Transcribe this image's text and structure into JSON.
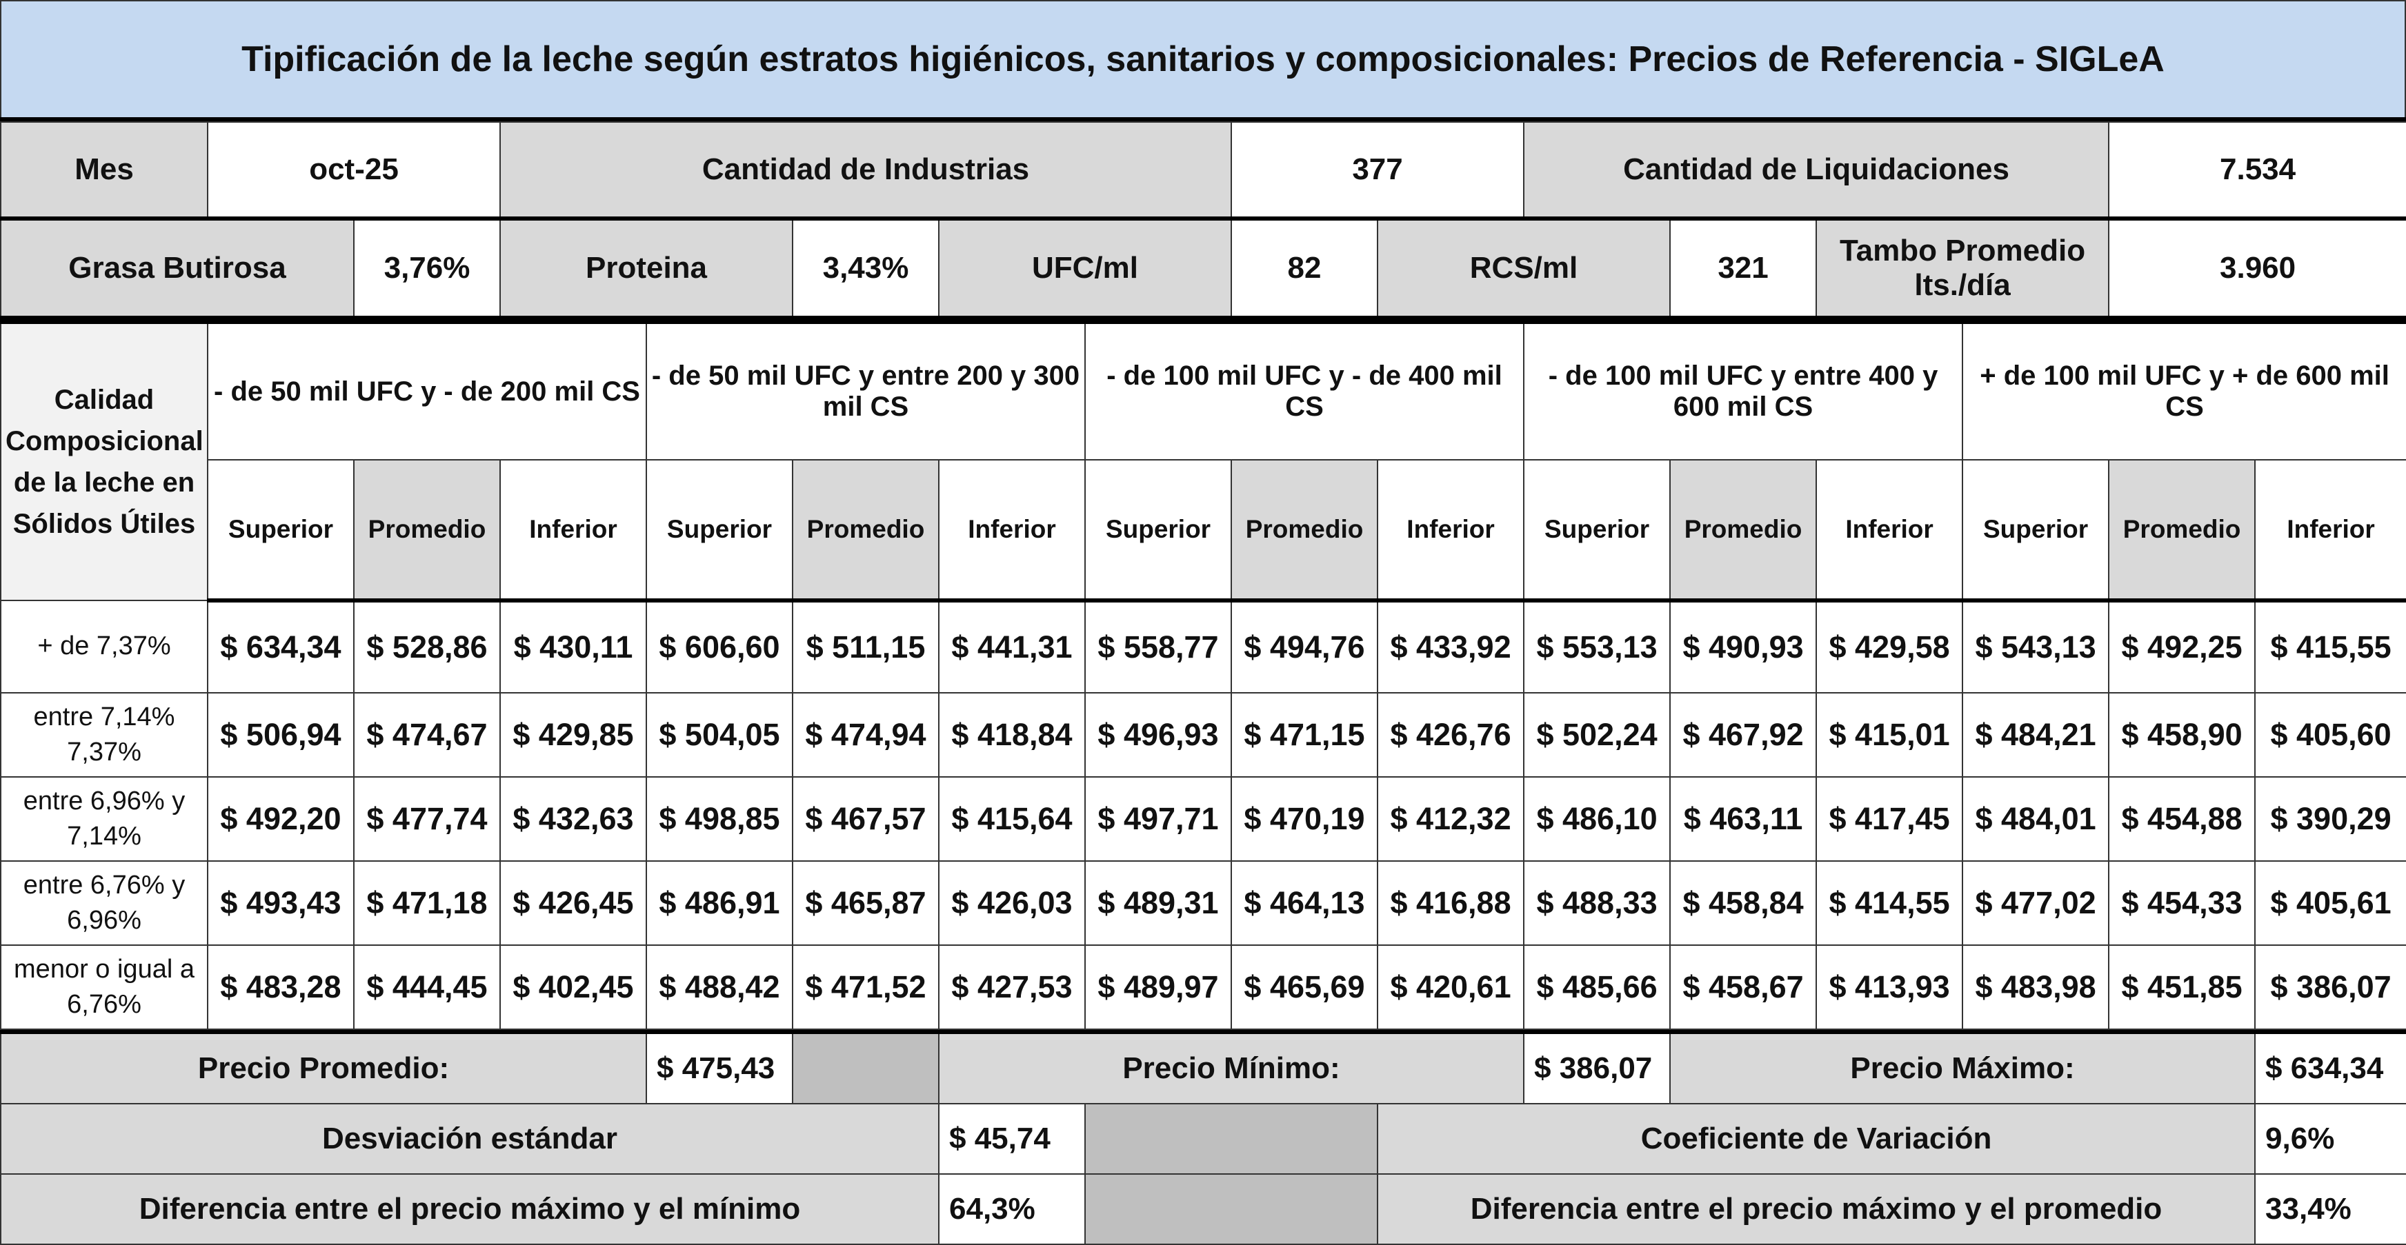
{
  "title": "Tipificación de la leche según estratos higiénicos, sanitarios y composicionales: Precios de Referencia - SIGLeA",
  "info": {
    "mes_label": "Mes",
    "mes_value": "oct-25",
    "industrias_label": "Cantidad de Industrias",
    "industrias_value": "377",
    "liquidaciones_label": "Cantidad de Liquidaciones",
    "liquidaciones_value": "7.534",
    "grasa_label": "Grasa Butirosa",
    "grasa_value": "3,76%",
    "proteina_label": "Proteina",
    "proteina_value": "3,43%",
    "ufc_label": "UFC/ml",
    "ufc_value": "82",
    "rcs_label": "RCS/ml",
    "rcs_value": "321",
    "tambo_label": "Tambo Promedio lts./día",
    "tambo_value": "3.960"
  },
  "side_header": "Calidad Composicional de la leche en Sólidos Útiles",
  "groups": [
    "- de 50 mil UFC y - de 200 mil CS",
    "- de 50 mil UFC y entre 200 y 300 mil CS",
    "- de 100 mil UFC y - de 400 mil CS",
    "- de 100 mil UFC y entre 400 y 600 mil CS",
    "+ de 100 mil UFC y + de 600 mil CS"
  ],
  "subcols": [
    "Superior",
    "Promedio",
    "Inferior"
  ],
  "rows": [
    {
      "label": "+ de 7,37%",
      "values": [
        "$ 634,34",
        "$ 528,86",
        "$ 430,11",
        "$ 606,60",
        "$ 511,15",
        "$ 441,31",
        "$ 558,77",
        "$ 494,76",
        "$ 433,92",
        "$ 553,13",
        "$ 490,93",
        "$ 429,58",
        "$ 543,13",
        "$ 492,25",
        "$ 415,55"
      ]
    },
    {
      "label": "entre 7,14% 7,37%",
      "values": [
        "$ 506,94",
        "$ 474,67",
        "$ 429,85",
        "$ 504,05",
        "$ 474,94",
        "$ 418,84",
        "$ 496,93",
        "$ 471,15",
        "$ 426,76",
        "$ 502,24",
        "$ 467,92",
        "$ 415,01",
        "$ 484,21",
        "$ 458,90",
        "$ 405,60"
      ]
    },
    {
      "label": "entre 6,96% y 7,14%",
      "values": [
        "$ 492,20",
        "$ 477,74",
        "$ 432,63",
        "$ 498,85",
        "$ 467,57",
        "$ 415,64",
        "$ 497,71",
        "$ 470,19",
        "$ 412,32",
        "$ 486,10",
        "$ 463,11",
        "$ 417,45",
        "$ 484,01",
        "$ 454,88",
        "$ 390,29"
      ]
    },
    {
      "label": "entre 6,76% y 6,96%",
      "values": [
        "$ 493,43",
        "$ 471,18",
        "$ 426,45",
        "$ 486,91",
        "$ 465,87",
        "$ 426,03",
        "$ 489,31",
        "$ 464,13",
        "$ 416,88",
        "$ 488,33",
        "$ 458,84",
        "$ 414,55",
        "$ 477,02",
        "$ 454,33",
        "$ 405,61"
      ]
    },
    {
      "label": "menor o igual a 6,76%",
      "values": [
        "$ 483,28",
        "$ 444,45",
        "$ 402,45",
        "$ 488,42",
        "$ 471,52",
        "$ 427,53",
        "$ 489,97",
        "$ 465,69",
        "$ 420,61",
        "$ 485,66",
        "$ 458,67",
        "$ 413,93",
        "$ 483,98",
        "$ 451,85",
        "$ 386,07"
      ]
    }
  ],
  "summary": {
    "promedio_label": "Precio Promedio:",
    "promedio_value": "$ 475,43",
    "minimo_label": "Precio Mínimo:",
    "minimo_value": "$ 386,07",
    "maximo_label": "Precio Máximo:",
    "maximo_value": "$ 634,34",
    "desviacion_label": "Desviación estándar",
    "desviacion_value": "$ 45,74",
    "coef_label": "Coeficiente de Variación",
    "coef_value": "9,6%",
    "dif_min_label": "Diferencia entre el precio máximo y el mínimo",
    "dif_min_value": "64,3%",
    "dif_prom_label": "Diferencia entre el precio máximo y el promedio",
    "dif_prom_value": "33,4%"
  }
}
